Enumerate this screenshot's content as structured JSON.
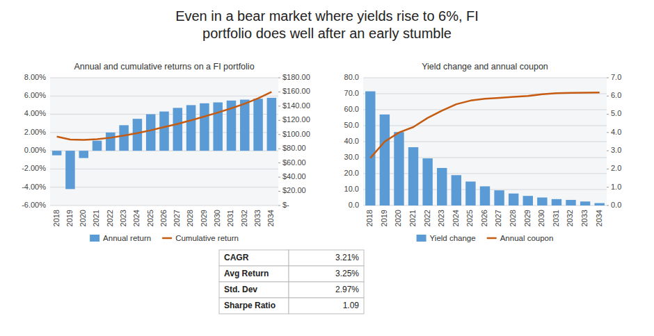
{
  "title": "Even in a bear market where yields rise to 6%, FI\nportfolio does well after an early stumble",
  "chart_data": [
    {
      "type": "bar",
      "title": "Annual and cumulative returns on a FI portfolio",
      "categories": [
        "2018",
        "2019",
        "2020",
        "2021",
        "2022",
        "2023",
        "2024",
        "2025",
        "2026",
        "2027",
        "2028",
        "2029",
        "2030",
        "2031",
        "2032",
        "2033",
        "2034"
      ],
      "series": [
        {
          "name": "Annual return",
          "type": "bar",
          "color": "#5B9BD5",
          "values": [
            -0.005,
            -0.042,
            -0.008,
            0.011,
            0.02,
            0.028,
            0.035,
            0.04,
            0.043,
            0.047,
            0.05,
            0.052,
            0.053,
            0.055,
            0.056,
            0.057,
            0.058
          ]
        },
        {
          "name": "Cumulative return",
          "type": "line",
          "axis": "y2",
          "color": "#C55A11",
          "values": [
            97.0,
            93.0,
            92.5,
            93.5,
            95.5,
            98.5,
            102.0,
            106.0,
            110.5,
            115.0,
            120.0,
            125.5,
            131.0,
            137.0,
            143.5,
            151.0,
            160.0
          ]
        }
      ],
      "ylim": [
        -0.06,
        0.08
      ],
      "yticks": [
        {
          "value": -0.06,
          "label": "-6.00%"
        },
        {
          "value": -0.04,
          "label": "-4.00%"
        },
        {
          "value": -0.02,
          "label": "-2.00%"
        },
        {
          "value": 0.0,
          "label": "0.00%"
        },
        {
          "value": 0.02,
          "label": "2.00%"
        },
        {
          "value": 0.04,
          "label": "4.00%"
        },
        {
          "value": 0.06,
          "label": "6.00%"
        },
        {
          "value": 0.08,
          "label": "8.00%"
        }
      ],
      "y2lim": [
        0,
        180
      ],
      "y2ticks": [
        {
          "value": 0,
          "label": "$-"
        },
        {
          "value": 20,
          "label": "$20.00"
        },
        {
          "value": 40,
          "label": "$40.00"
        },
        {
          "value": 60,
          "label": "$60.00"
        },
        {
          "value": 80,
          "label": "$80.00"
        },
        {
          "value": 100,
          "label": "$100.00"
        },
        {
          "value": 120,
          "label": "$120.00"
        },
        {
          "value": 140,
          "label": "$140.00"
        },
        {
          "value": 160,
          "label": "$160.00"
        },
        {
          "value": 180,
          "label": "$180.00"
        }
      ],
      "grid": true,
      "legend": "bottom"
    },
    {
      "type": "bar",
      "title": "Yield change and annual coupon",
      "categories": [
        "2018",
        "2019",
        "2020",
        "2021",
        "2022",
        "2023",
        "2024",
        "2025",
        "2026",
        "2027",
        "2028",
        "2029",
        "2030",
        "2031",
        "2032",
        "2033",
        "2034"
      ],
      "series": [
        {
          "name": "Yield change",
          "type": "bar",
          "color": "#5B9BD5",
          "values": [
            71.5,
            57.0,
            46.0,
            36.5,
            29.5,
            23.5,
            19.0,
            15.0,
            12.0,
            9.5,
            7.5,
            6.0,
            5.0,
            4.0,
            3.5,
            2.5,
            1.5
          ]
        },
        {
          "name": "Annual coupon",
          "type": "line",
          "axis": "y2",
          "color": "#C55A11",
          "values": [
            2.6,
            3.5,
            4.0,
            4.3,
            4.8,
            5.2,
            5.55,
            5.75,
            5.85,
            5.9,
            5.95,
            6.0,
            6.1,
            6.15,
            6.17,
            6.18,
            6.19
          ]
        }
      ],
      "ylim": [
        0,
        80
      ],
      "yticks": [
        {
          "value": 0,
          "label": "0.0"
        },
        {
          "value": 10,
          "label": "10.0"
        },
        {
          "value": 20,
          "label": "20.0"
        },
        {
          "value": 30,
          "label": "30.0"
        },
        {
          "value": 40,
          "label": "40.0"
        },
        {
          "value": 50,
          "label": "50.0"
        },
        {
          "value": 60,
          "label": "60.0"
        },
        {
          "value": 70,
          "label": "70.0"
        },
        {
          "value": 80,
          "label": "80.0"
        }
      ],
      "y2lim": [
        0,
        7.0
      ],
      "y2ticks": [
        {
          "value": 0.0,
          "label": "0.0"
        },
        {
          "value": 1.0,
          "label": "1.0"
        },
        {
          "value": 2.0,
          "label": "2.0"
        },
        {
          "value": 3.0,
          "label": "3.0"
        },
        {
          "value": 4.0,
          "label": "4.0"
        },
        {
          "value": 5.0,
          "label": "5.0"
        },
        {
          "value": 6.0,
          "label": "6.0"
        },
        {
          "value": 7.0,
          "label": "7.0"
        }
      ],
      "grid": true,
      "legend": "bottom"
    }
  ],
  "table": {
    "keys": [
      "CAGR",
      "Avg Return",
      "Std. Dev",
      "Sharpe Ratio"
    ],
    "values": [
      "3.21%",
      "3.25%",
      "2.97%",
      "1.09"
    ]
  }
}
